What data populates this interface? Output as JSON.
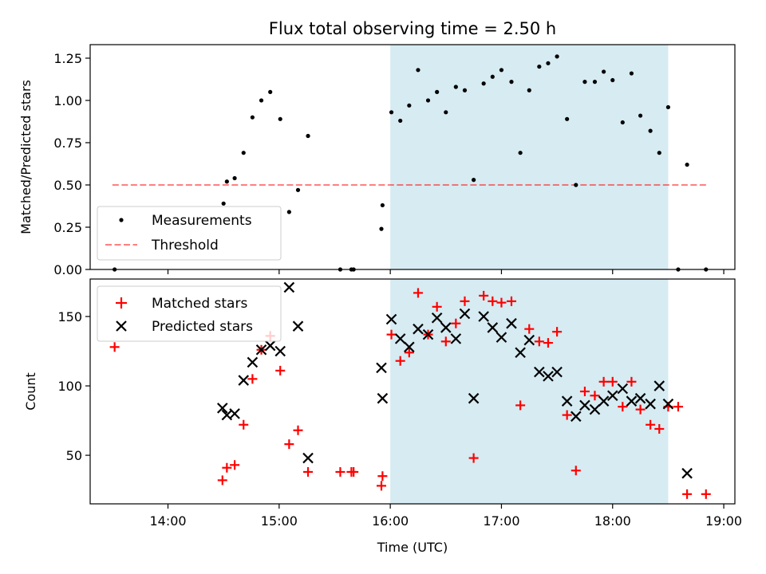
{
  "title": "Flux total observing time = 2.50 h",
  "colors": {
    "shade": "#add8e6",
    "threshold": "#ff0000",
    "matched": "#ff0000",
    "predicted": "#000000",
    "measurement": "#000000"
  },
  "chart_data": [
    {
      "type": "scatter",
      "ylabel": "Matched/Predicted stars",
      "xlim": [
        13.3,
        19.1
      ],
      "ylim": [
        0.0,
        1.33
      ],
      "yticks": [
        0.0,
        0.25,
        0.5,
        0.75,
        1.0,
        1.25
      ],
      "ytick_labels": [
        "0.00",
        "0.25",
        "0.50",
        "0.75",
        "1.00",
        "1.25"
      ],
      "shaded_span": [
        16.0,
        18.5
      ],
      "legend": {
        "placement": "lower-left",
        "entries": [
          "Measurements",
          "Threshold"
        ]
      },
      "threshold": {
        "name": "Threshold",
        "value": 0.5,
        "x_range": [
          13.5,
          18.85
        ]
      },
      "series": [
        {
          "name": "Measurements",
          "x": [
            13.52,
            14.5,
            14.53,
            14.6,
            14.68,
            14.76,
            14.84,
            14.92,
            15.01,
            15.09,
            15.17,
            15.26,
            15.55,
            15.65,
            15.67,
            15.92,
            15.93,
            16.01,
            16.09,
            16.17,
            16.25,
            16.34,
            16.42,
            16.5,
            16.59,
            16.67,
            16.75,
            16.84,
            16.92,
            17.0,
            17.09,
            17.17,
            17.25,
            17.34,
            17.42,
            17.5,
            17.59,
            17.67,
            17.75,
            17.84,
            17.92,
            18.0,
            18.09,
            18.17,
            18.25,
            18.34,
            18.42,
            18.5,
            18.59,
            18.67,
            18.84
          ],
          "values": [
            0.0,
            0.39,
            0.52,
            0.54,
            0.69,
            0.9,
            1.0,
            1.05,
            0.89,
            0.34,
            0.47,
            0.79,
            0.0,
            0.0,
            0.0,
            0.24,
            0.38,
            0.93,
            0.88,
            0.97,
            1.18,
            1.0,
            1.05,
            0.93,
            1.08,
            1.06,
            0.53,
            1.1,
            1.14,
            1.18,
            1.11,
            0.69,
            1.06,
            1.2,
            1.22,
            1.26,
            0.89,
            0.5,
            1.11,
            1.11,
            1.17,
            1.12,
            0.87,
            1.16,
            0.91,
            0.82,
            0.69,
            0.96,
            0.0,
            0.62,
            0.0
          ]
        }
      ]
    },
    {
      "type": "scatter",
      "ylabel": "Count",
      "xlabel": "Time (UTC)",
      "xlim": [
        13.3,
        19.1
      ],
      "ylim": [
        15,
        177
      ],
      "xticks": [
        14,
        15,
        16,
        17,
        18,
        19
      ],
      "xtick_labels": [
        "14:00",
        "15:00",
        "16:00",
        "17:00",
        "18:00",
        "19:00"
      ],
      "yticks": [
        50,
        100,
        150
      ],
      "ytick_labels": [
        "50",
        "100",
        "150"
      ],
      "shaded_span": [
        16.0,
        18.5
      ],
      "legend": {
        "placement": "upper-left",
        "entries": [
          "Matched stars",
          "Predicted stars"
        ]
      },
      "series": [
        {
          "name": "Matched stars",
          "marker": "plus",
          "x": [
            13.52,
            14.49,
            14.53,
            14.6,
            14.68,
            14.76,
            14.84,
            14.92,
            15.01,
            15.09,
            15.17,
            15.26,
            15.55,
            15.65,
            15.67,
            15.92,
            15.93,
            16.01,
            16.09,
            16.17,
            16.25,
            16.34,
            16.42,
            16.5,
            16.59,
            16.67,
            16.75,
            16.84,
            16.92,
            17.0,
            17.09,
            17.17,
            17.25,
            17.34,
            17.42,
            17.5,
            17.59,
            17.67,
            17.75,
            17.84,
            17.92,
            18.0,
            18.09,
            18.17,
            18.25,
            18.34,
            18.42,
            18.5,
            18.59,
            18.67,
            18.84
          ],
          "values": [
            128,
            32,
            41,
            43,
            72,
            105,
            126,
            136,
            111,
            58,
            68,
            38,
            38,
            38,
            38,
            28,
            35,
            137,
            118,
            124,
            167,
            137,
            157,
            132,
            145,
            161,
            48,
            165,
            161,
            160,
            161,
            86,
            141,
            132,
            131,
            139,
            79,
            39,
            96,
            93,
            103,
            103,
            85,
            103,
            83,
            72,
            69,
            85,
            85,
            22,
            22
          ]
        },
        {
          "name": "Predicted stars",
          "marker": "x",
          "x": [
            14.49,
            14.53,
            14.6,
            14.68,
            14.76,
            14.84,
            14.92,
            15.01,
            15.09,
            15.17,
            15.26,
            15.92,
            15.93,
            16.01,
            16.09,
            16.17,
            16.25,
            16.34,
            16.42,
            16.5,
            16.59,
            16.67,
            16.75,
            16.84,
            16.92,
            17.0,
            17.09,
            17.17,
            17.25,
            17.34,
            17.42,
            17.5,
            17.59,
            17.67,
            17.75,
            17.84,
            17.92,
            18.0,
            18.09,
            18.17,
            18.25,
            18.34,
            18.42,
            18.5,
            18.67
          ],
          "values": [
            84,
            79,
            80,
            104,
            117,
            126,
            129,
            125,
            171,
            143,
            48,
            113,
            91,
            148,
            134,
            128,
            141,
            137,
            149,
            142,
            134,
            152,
            91,
            150,
            142,
            135,
            145,
            124,
            133,
            110,
            107,
            110,
            89,
            78,
            86,
            83,
            89,
            93,
            98,
            89,
            91,
            87,
            100,
            87,
            37
          ]
        }
      ]
    }
  ]
}
